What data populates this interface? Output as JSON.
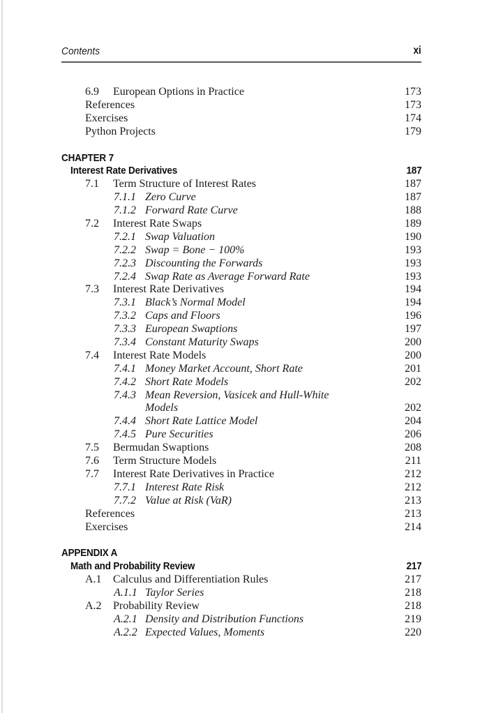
{
  "page": {
    "header": {
      "left": "Contents",
      "right": "xi"
    }
  },
  "toc": {
    "rows": [
      {
        "kind": "section",
        "num": "6.9",
        "title": "European Options in Practice",
        "page": "173"
      },
      {
        "kind": "plain",
        "title": "References",
        "page": "173"
      },
      {
        "kind": "plain",
        "title": "Exercises",
        "page": "174"
      },
      {
        "kind": "plain",
        "title": "Python Projects",
        "page": "179"
      },
      {
        "kind": "gap"
      },
      {
        "kind": "chapter_label",
        "label": "CHAPTER 7"
      },
      {
        "kind": "chapter_title",
        "title": "Interest Rate Derivatives",
        "page": "187"
      },
      {
        "kind": "section",
        "num": "7.1",
        "title": "Term Structure of Interest Rates",
        "page": "187"
      },
      {
        "kind": "subsection",
        "num": "7.1.1",
        "title": "Zero Curve",
        "page": "187"
      },
      {
        "kind": "subsection",
        "num": "7.1.2",
        "title": "Forward Rate Curve",
        "page": "188"
      },
      {
        "kind": "section",
        "num": "7.2",
        "title": "Interest Rate Swaps",
        "page": "189"
      },
      {
        "kind": "subsection",
        "num": "7.2.1",
        "title": "Swap Valuation",
        "page": "190"
      },
      {
        "kind": "subsection",
        "num": "7.2.2",
        "title": "Swap = Bone − 100%",
        "page": "193"
      },
      {
        "kind": "subsection",
        "num": "7.2.3",
        "title": "Discounting the Forwards",
        "page": "193"
      },
      {
        "kind": "subsection",
        "num": "7.2.4",
        "title": "Swap Rate as Average Forward Rate",
        "page": "193"
      },
      {
        "kind": "section",
        "num": "7.3",
        "title": "Interest Rate Derivatives",
        "page": "194"
      },
      {
        "kind": "subsection",
        "num": "7.3.1",
        "title": "Black’s Normal Model",
        "page": "194"
      },
      {
        "kind": "subsection",
        "num": "7.3.2",
        "title": "Caps and Floors",
        "page": "196"
      },
      {
        "kind": "subsection",
        "num": "7.3.3",
        "title": "European Swaptions",
        "page": "197"
      },
      {
        "kind": "subsection",
        "num": "7.3.4",
        "title": "Constant Maturity Swaps",
        "page": "200"
      },
      {
        "kind": "section",
        "num": "7.4",
        "title": "Interest Rate Models",
        "page": "200"
      },
      {
        "kind": "subsection",
        "num": "7.4.1",
        "title": "Money Market Account, Short Rate",
        "page": "201"
      },
      {
        "kind": "subsection",
        "num": "7.4.2",
        "title": "Short Rate Models",
        "page": "202"
      },
      {
        "kind": "subsection",
        "num": "7.4.3",
        "title": "Mean Reversion, Vasicek and Hull-White",
        "page": ""
      },
      {
        "kind": "subsection_cont",
        "title": "Models",
        "page": "202"
      },
      {
        "kind": "subsection",
        "num": "7.4.4",
        "title": "Short Rate Lattice Model",
        "page": "204"
      },
      {
        "kind": "subsection",
        "num": "7.4.5",
        "title": "Pure Securities",
        "page": "206"
      },
      {
        "kind": "section",
        "num": "7.5",
        "title": "Bermudan Swaptions",
        "page": "208"
      },
      {
        "kind": "section",
        "num": "7.6",
        "title": "Term Structure Models",
        "page": "211"
      },
      {
        "kind": "section",
        "num": "7.7",
        "title": "Interest Rate Derivatives in Practice",
        "page": "212"
      },
      {
        "kind": "subsection",
        "num": "7.7.1",
        "title": "Interest Rate Risk",
        "page": "212"
      },
      {
        "kind": "subsection",
        "num": "7.7.2",
        "title": "Value at Risk (VaR)",
        "page": "213"
      },
      {
        "kind": "plain",
        "title": "References",
        "page": "213"
      },
      {
        "kind": "plain",
        "title": "Exercises",
        "page": "214"
      },
      {
        "kind": "gap"
      },
      {
        "kind": "chapter_label",
        "label": "APPENDIX A"
      },
      {
        "kind": "chapter_title",
        "title": "Math and Probability Review",
        "page": "217"
      },
      {
        "kind": "section",
        "num": "A.1",
        "title": "Calculus and Differentiation Rules",
        "page": "217"
      },
      {
        "kind": "subsection",
        "num": "A.1.1",
        "title": "Taylor Series",
        "page": "218"
      },
      {
        "kind": "section",
        "num": "A.2",
        "title": "Probability Review",
        "page": "218"
      },
      {
        "kind": "subsection",
        "num": "A.2.1",
        "title": "Density and Distribution Functions",
        "page": "219"
      },
      {
        "kind": "subsection",
        "num": "A.2.2",
        "title": "Expected Values, Moments",
        "page": "220"
      }
    ]
  },
  "colors": {
    "text": "#1b1b1b",
    "heading": "#0f0f0f",
    "rule": "#59595b",
    "page_edge": "#dcdcdc",
    "background": "#ffffff"
  }
}
